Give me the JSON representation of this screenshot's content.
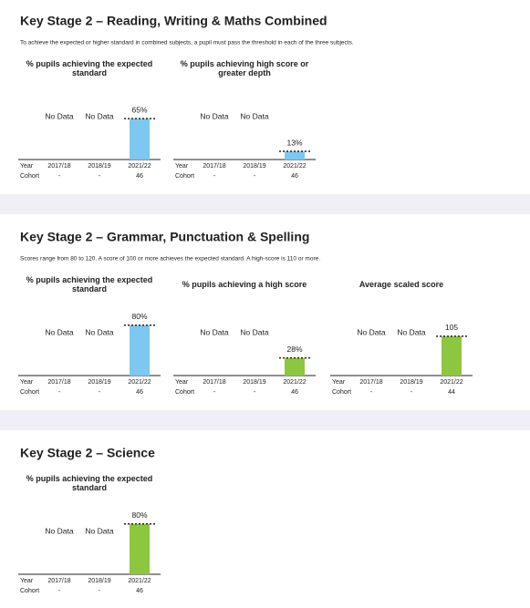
{
  "sections": [
    {
      "title": "Key Stage 2 – Reading, Writing & Maths Combined",
      "note": "To achieve the expected or higher standard in combined subjects, a pupil must pass the threshold in each of the three subjects.",
      "chart_data": [
        {
          "type": "bar",
          "title": "% pupils achieving the expected standard",
          "row_labels": [
            "Year",
            "Cohort"
          ],
          "categories": [
            "2017/18",
            "2018/19",
            "2021/22"
          ],
          "cohort": [
            "-",
            "-",
            "46"
          ],
          "values": [
            null,
            null,
            65
          ],
          "value_labels": [
            "No Data",
            "No Data",
            "65%"
          ],
          "color": "#7cc8f0",
          "ylim": [
            0,
            100
          ]
        },
        {
          "type": "bar",
          "title": "% pupils achieving high score or greater depth",
          "row_labels": [
            "Year",
            "Cohort"
          ],
          "categories": [
            "2017/18",
            "2018/19",
            "2021/22"
          ],
          "cohort": [
            "-",
            "-",
            "46"
          ],
          "values": [
            null,
            null,
            13
          ],
          "value_labels": [
            "No Data",
            "No Data",
            "13%"
          ],
          "color": "#7cc8f0",
          "ylim": [
            0,
            100
          ]
        }
      ]
    },
    {
      "title": "Key Stage 2 – Grammar, Punctuation & Spelling",
      "note": "Scores range from 80 to 120. A score of 100 or more achieves the expected standard. A high-score is 110 or more.",
      "chart_data": [
        {
          "type": "bar",
          "title": "% pupils achieving the expected standard",
          "row_labels": [
            "Year",
            "Cohort"
          ],
          "categories": [
            "2017/18",
            "2018/19",
            "2021/22"
          ],
          "cohort": [
            "-",
            "-",
            "46"
          ],
          "values": [
            null,
            null,
            80
          ],
          "value_labels": [
            "No Data",
            "No Data",
            "80%"
          ],
          "color": "#7cc8f0",
          "ylim": [
            0,
            100
          ]
        },
        {
          "type": "bar",
          "title": "% pupils achieving a high score",
          "row_labels": [
            "Year",
            "Cohort"
          ],
          "categories": [
            "2017/18",
            "2018/19",
            "2021/22"
          ],
          "cohort": [
            "-",
            "-",
            "46"
          ],
          "values": [
            null,
            null,
            28
          ],
          "value_labels": [
            "No Data",
            "No Data",
            "28%"
          ],
          "color": "#8dc63f",
          "ylim": [
            0,
            100
          ]
        },
        {
          "type": "bar",
          "title": "Average scaled score",
          "row_labels": [
            "Year",
            "Cohort"
          ],
          "categories": [
            "2017/18",
            "2018/19",
            "2021/22"
          ],
          "cohort": [
            "-",
            "-",
            "44"
          ],
          "values": [
            null,
            null,
            105
          ],
          "value_labels": [
            "No Data",
            "No Data",
            null
          ],
          "color": "#8dc63f",
          "ylim": [
            80,
            120
          ]
        }
      ]
    },
    {
      "title": "Key Stage 2 – Science",
      "chart_data": [
        {
          "type": "bar",
          "title": "% pupils achieving the expected standard",
          "row_labels": [
            "Year",
            "Cohort"
          ],
          "categories": [
            "2017/18",
            "2018/19",
            "2021/22"
          ],
          "cohort": [
            "-",
            "-",
            "46"
          ],
          "values": [
            null,
            null,
            80
          ],
          "value_labels": [
            "No Data",
            "No Data",
            "80%"
          ],
          "color": "#8dc63f",
          "ylim": [
            0,
            100
          ]
        }
      ]
    }
  ]
}
